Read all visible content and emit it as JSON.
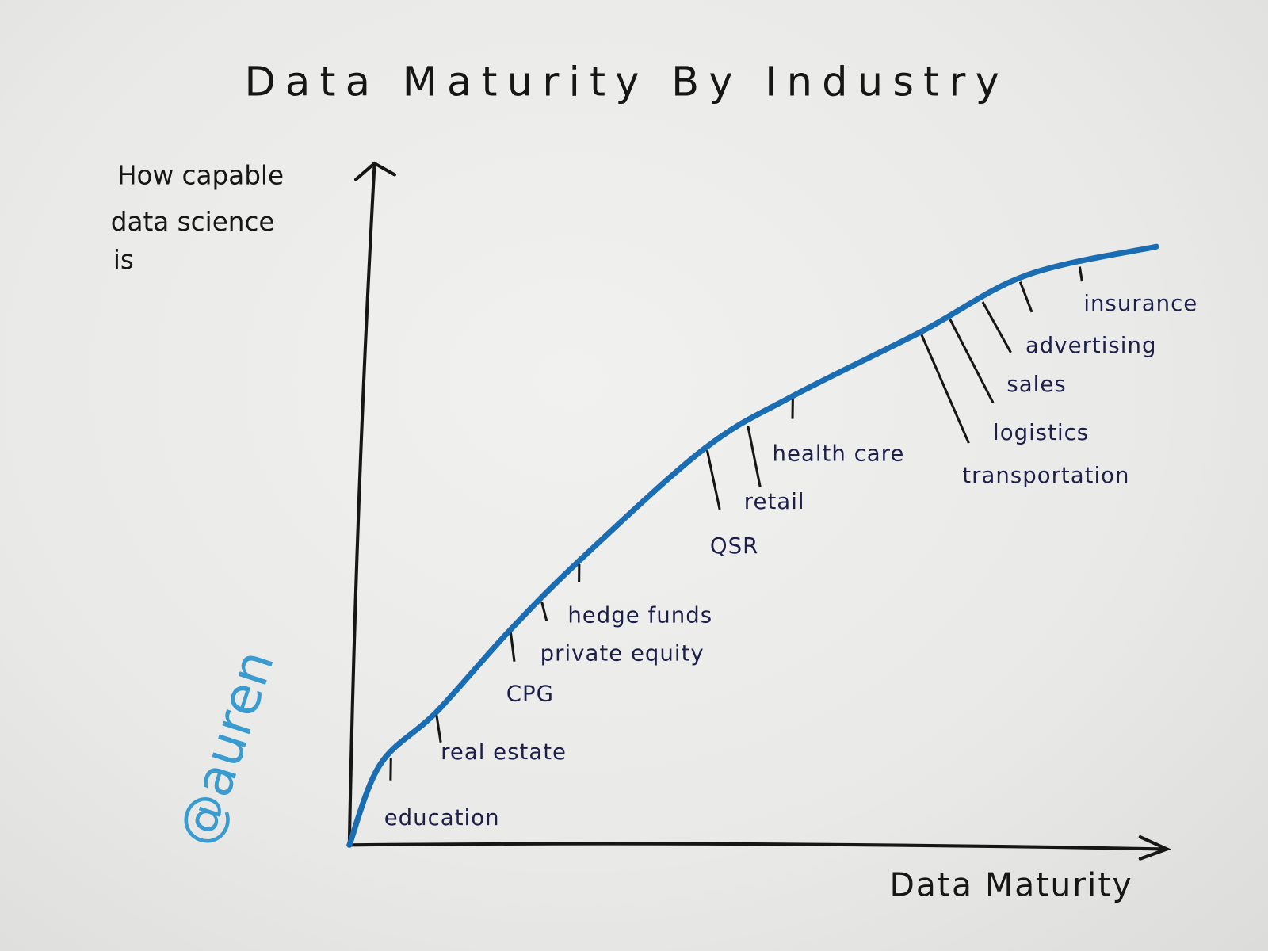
{
  "chart_data": {
    "type": "line",
    "title": "Data Maturity By Industry",
    "xlabel": "Data Maturity",
    "ylabel": "How capable data science is",
    "ylabel_lines": [
      "How capable",
      "data science",
      "is"
    ],
    "grid": false,
    "legend": "none",
    "xlim": [
      0,
      100
    ],
    "ylim": [
      0,
      100
    ],
    "series": [
      {
        "color": "#1a6db3",
        "x": [
          0,
          3.8,
          10.7,
          19.6,
          28.6,
          43.5,
          54.4,
          70.2,
          83.1,
          99
        ],
        "y": [
          0,
          11.9,
          19.6,
          31.5,
          42.3,
          58.3,
          66.1,
          75.6,
          83.9,
          88.1
        ]
      }
    ],
    "annotations": [
      {
        "label": "education",
        "x": 5.1
      },
      {
        "label": "real estate",
        "x": 10.7
      },
      {
        "label": "CPG",
        "x": 19.8
      },
      {
        "label": "private equity",
        "x": 23.6
      },
      {
        "label": "hedge funds",
        "x": 28.2
      },
      {
        "label": "QSR",
        "x": 43.9
      },
      {
        "label": "retail",
        "x": 48.9
      },
      {
        "label": "health care",
        "x": 54.4
      },
      {
        "label": "transportation",
        "x": 70.2
      },
      {
        "label": "logistics",
        "x": 73.7
      },
      {
        "label": "sales",
        "x": 77.7
      },
      {
        "label": "advertising",
        "x": 82.3
      },
      {
        "label": "insurance",
        "x": 89.6
      }
    ],
    "signature": "@auren",
    "colors": {
      "ink": "#161616",
      "curve": "#1a6db3",
      "labels": "#1d1f4a",
      "signature": "#3a9bd0"
    }
  }
}
